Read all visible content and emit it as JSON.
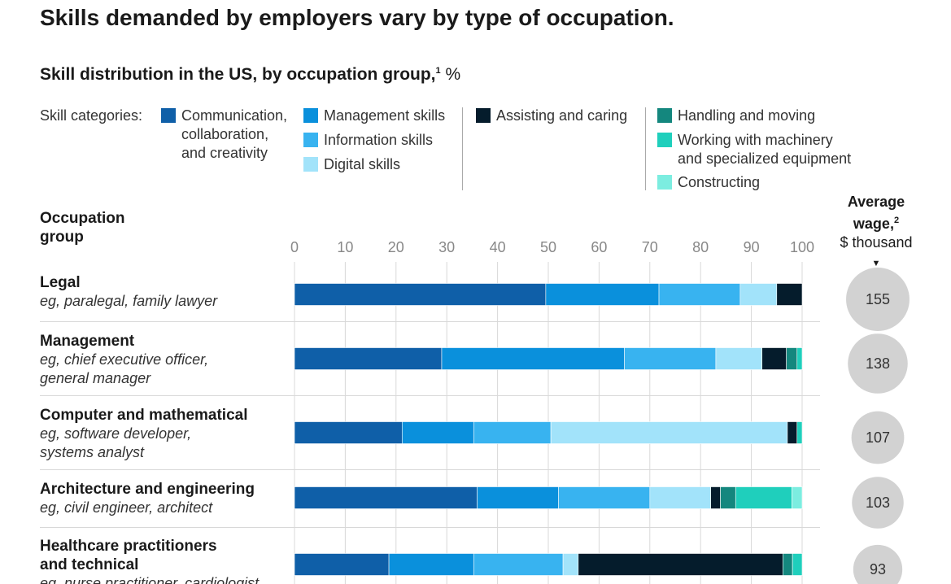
{
  "title": "Skills demanded by employers vary by type of occupation.",
  "chart_data": {
    "type": "stacked_bar",
    "orientation": "horizontal",
    "subtitle": "Skill distribution in the US, by occupation group,",
    "subtitle_note": "1",
    "unit": "%",
    "legend_title": "Skill categories:",
    "category_header": "Occupation\ngroup",
    "categories": [
      "Legal",
      "Management",
      "Computer and mathematical",
      "Architecture and engineering",
      "Healthcare practitioners\nand technical"
    ],
    "examples": [
      "eg, paralegal, family lawyer",
      "eg, chief executive officer,\ngeneral manager",
      "eg, software developer,\nsystems analyst",
      "eg, civil engineer, architect",
      "eg, nurse practitioner, cardiologist"
    ],
    "xlim": [
      0,
      100
    ],
    "xticks": [
      0,
      10,
      20,
      30,
      40,
      50,
      60,
      70,
      80,
      90,
      100
    ],
    "grid": true,
    "series": [
      {
        "name": "Communication,\ncollaboration,\nand creativity",
        "color": "#0f5fa8",
        "values": [
          49.5,
          29,
          21.2,
          36,
          18.6
        ]
      },
      {
        "name": "Management skills",
        "color": "#0a90dc",
        "values": [
          22.3,
          36,
          14.1,
          16,
          16.7
        ]
      },
      {
        "name": "Information skills",
        "color": "#38b3f0",
        "values": [
          16,
          18,
          15.2,
          18,
          17.6
        ]
      },
      {
        "name": "Digital skills",
        "color": "#a2e3fa",
        "values": [
          7.2,
          9.1,
          46.6,
          12,
          3
        ]
      },
      {
        "name": "Assisting and caring",
        "color": "#051c2c",
        "values": [
          5,
          4.8,
          1.9,
          1.9,
          40.3
        ]
      },
      {
        "name": "Handling and moving",
        "color": "#14877e",
        "values": [
          0,
          2.1,
          0,
          3,
          1.9
        ]
      },
      {
        "name": "Working with machinery\nand specialized equipment",
        "color": "#1fcfbc",
        "values": [
          0,
          1,
          1,
          11.1,
          1.9
        ]
      },
      {
        "name": "Constructing",
        "color": "#7cede0",
        "values": [
          0,
          0,
          0,
          2,
          0
        ]
      }
    ],
    "wage": {
      "title": "Average\nwage,",
      "note": "2",
      "unit": "$ thousand",
      "color": "#d2d2d2",
      "values": [
        155,
        138,
        107,
        103,
        93
      ]
    }
  }
}
